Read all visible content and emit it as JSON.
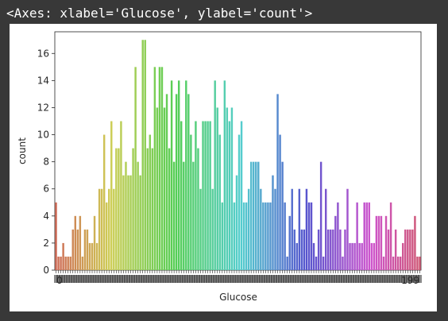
{
  "notebook": {
    "output_text": "<Axes: xlabel='Glucose', ylabel='count'>"
  },
  "chart_data": {
    "type": "bar",
    "xlabel": "Glucose",
    "ylabel": "count",
    "ylim": [
      0,
      17.6
    ],
    "yticks": [
      0,
      2,
      4,
      6,
      8,
      10,
      12,
      14,
      16
    ],
    "first_tick_label": "0",
    "last_tick_label": "199",
    "palette": "husl",
    "values": [
      5,
      1,
      1,
      2,
      1,
      1,
      1,
      3,
      4,
      3,
      4,
      1,
      3,
      3,
      2,
      2,
      4,
      2,
      6,
      6,
      10,
      5,
      6,
      11,
      6,
      9,
      9,
      11,
      7,
      8,
      7,
      7,
      9,
      15,
      8,
      7,
      17,
      17,
      9,
      10,
      9,
      15,
      12,
      15,
      15,
      12,
      13,
      9,
      14,
      8,
      13,
      14,
      11,
      8,
      14,
      13,
      10,
      8,
      11,
      9,
      6,
      11,
      11,
      11,
      11,
      6,
      14,
      12,
      10,
      5,
      14,
      12,
      11,
      12,
      5,
      7,
      10,
      11,
      5,
      5,
      6,
      8,
      8,
      8,
      8,
      6,
      5,
      5,
      5,
      5,
      7,
      6,
      13,
      10,
      8,
      5,
      1,
      4,
      6,
      3,
      2,
      6,
      3,
      3,
      6,
      5,
      5,
      2,
      1,
      3,
      8,
      1,
      6,
      3,
      3,
      3,
      4,
      5,
      3,
      1,
      3,
      6,
      2,
      2,
      2,
      5,
      2,
      2,
      5,
      5,
      5,
      2,
      2,
      4,
      4,
      4,
      1,
      4,
      3,
      5,
      1,
      3,
      1,
      1,
      2,
      3,
      3,
      3,
      3,
      4,
      1,
      1
    ]
  }
}
